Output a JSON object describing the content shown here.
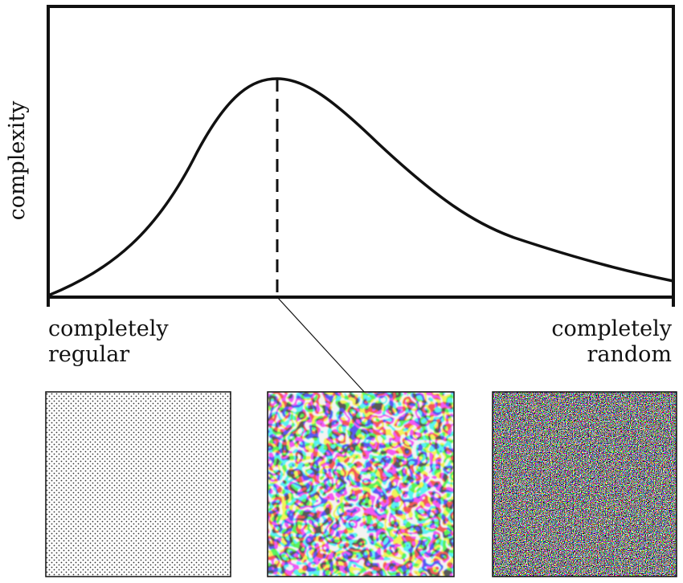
{
  "y_axis": {
    "label": "complexity"
  },
  "x_axis": {
    "left": [
      "completely",
      "regular"
    ],
    "right": [
      "completely",
      "random"
    ]
  }
}
